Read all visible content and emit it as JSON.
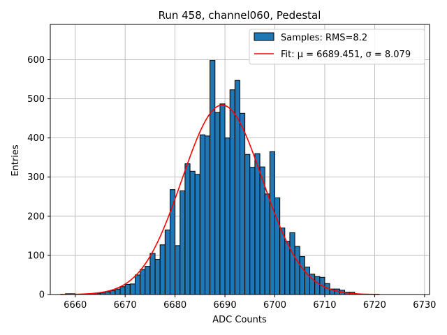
{
  "chart_data": {
    "type": "bar",
    "title": "Run 458, channel060, Pedestal",
    "xlabel": "ADC Counts",
    "ylabel": "Entries",
    "xlim": [
      6655,
      6731
    ],
    "ylim": [
      0,
      690
    ],
    "xticks": [
      6660,
      6670,
      6680,
      6690,
      6700,
      6710,
      6720,
      6730
    ],
    "yticks": [
      0,
      100,
      200,
      300,
      400,
      500,
      600
    ],
    "grid": true,
    "legend_position": "top-right",
    "bin_width": 1,
    "bin_starts": [
      6658,
      6659,
      6660,
      6661,
      6662,
      6663,
      6664,
      6665,
      6666,
      6667,
      6668,
      6669,
      6670,
      6671,
      6672,
      6673,
      6674,
      6675,
      6676,
      6677,
      6678,
      6679,
      6680,
      6681,
      6682,
      6683,
      6684,
      6685,
      6686,
      6687,
      6688,
      6689,
      6690,
      6691,
      6692,
      6693,
      6694,
      6695,
      6696,
      6697,
      6698,
      6699,
      6700,
      6701,
      6702,
      6703,
      6704,
      6705,
      6706,
      6707,
      6708,
      6709,
      6710,
      6711,
      6712,
      6713,
      6714,
      6715
    ],
    "counts": [
      2,
      2,
      0,
      0,
      1,
      2,
      3,
      4,
      7,
      10,
      14,
      20,
      26,
      27,
      50,
      64,
      72,
      105,
      90,
      127,
      165,
      268,
      125,
      265,
      334,
      315,
      307,
      408,
      405,
      598,
      465,
      487,
      400,
      523,
      547,
      463,
      358,
      325,
      360,
      326,
      257,
      365,
      247,
      170,
      136,
      158,
      123,
      97,
      70,
      52,
      46,
      44,
      28,
      14,
      14,
      11,
      6,
      6
    ],
    "series": [
      {
        "name": "Samples: RMS=8.2",
        "kind": "histogram",
        "fill": "#1f77b4",
        "edge": "#000000"
      },
      {
        "name": "Fit: μ = 6689.451, σ = 8.079",
        "kind": "line",
        "color": "#ff0000",
        "model": "gaussian",
        "mu": 6689.451,
        "sigma": 8.079,
        "amplitude": 484,
        "x_range": [
          6657,
          6721
        ]
      }
    ]
  }
}
